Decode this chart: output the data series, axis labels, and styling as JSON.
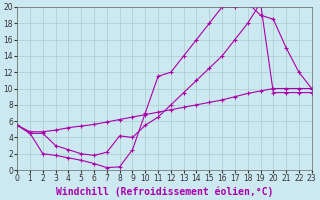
{
  "background_color": "#cce8f0",
  "grid_color": "#aacccc",
  "line_color": "#aa00aa",
  "line1_x": [
    0,
    1,
    2,
    3,
    4,
    5,
    6,
    7,
    8,
    9,
    10,
    11,
    12,
    13,
    14,
    15,
    16,
    17,
    18,
    19,
    20,
    21,
    22,
    23
  ],
  "line1_y": [
    5.5,
    4.5,
    2.0,
    1.8,
    1.5,
    1.2,
    0.8,
    0.3,
    0.4,
    2.5,
    7.0,
    11.5,
    12.0,
    14.0,
    16.0,
    18.0,
    20.0,
    20.0,
    20.5,
    19.0,
    18.5,
    15.0,
    12.0,
    10.0
  ],
  "line2_x": [
    0,
    1,
    2,
    3,
    4,
    5,
    6,
    7,
    8,
    9,
    10,
    11,
    12,
    13,
    14,
    15,
    16,
    17,
    18,
    19,
    20,
    21,
    22,
    23
  ],
  "line2_y": [
    5.5,
    4.5,
    4.5,
    3.0,
    2.5,
    2.0,
    1.8,
    2.2,
    4.2,
    4.0,
    5.5,
    6.5,
    8.0,
    9.5,
    11.0,
    12.5,
    14.0,
    16.0,
    18.0,
    20.5,
    9.5,
    9.5,
    9.5,
    9.5
  ],
  "line3_x": [
    0,
    1,
    2,
    3,
    4,
    5,
    6,
    7,
    8,
    9,
    10,
    11,
    12,
    13,
    14,
    15,
    16,
    17,
    18,
    19,
    20,
    21,
    22,
    23
  ],
  "line3_y": [
    5.5,
    4.7,
    4.7,
    4.9,
    5.2,
    5.4,
    5.6,
    5.9,
    6.2,
    6.5,
    6.8,
    7.1,
    7.4,
    7.7,
    8.0,
    8.3,
    8.6,
    9.0,
    9.4,
    9.7,
    10.0,
    10.0,
    10.0,
    10.0
  ],
  "xlim": [
    0,
    23
  ],
  "ylim": [
    0,
    20
  ],
  "xticks": [
    0,
    1,
    2,
    3,
    4,
    5,
    6,
    7,
    8,
    9,
    10,
    11,
    12,
    13,
    14,
    15,
    16,
    17,
    18,
    19,
    20,
    21,
    22,
    23
  ],
  "yticks": [
    0,
    2,
    4,
    6,
    8,
    10,
    12,
    14,
    16,
    18,
    20
  ],
  "xlabel": "Windchill (Refroidissement éolien,°C)",
  "xlabel_fontsize": 7,
  "tick_fontsize": 5.5,
  "marker": "+"
}
